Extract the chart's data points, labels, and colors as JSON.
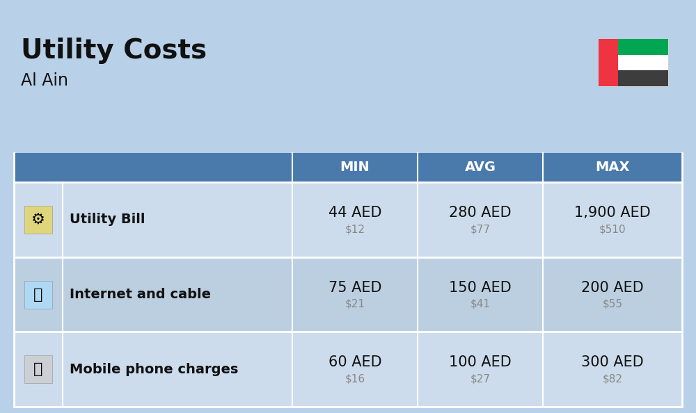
{
  "title": "Utility Costs",
  "subtitle": "Al Ain",
  "bg_color": "#b8d0e8",
  "header_bg": "#4a7aab",
  "header_text_color": "#ffffff",
  "row_bg": "#cddcec",
  "row_bg_alt": "#bccfe0",
  "divider_color": "#ffffff",
  "col_headers": [
    "MIN",
    "AVG",
    "MAX"
  ],
  "rows": [
    {
      "label": "Utility Bill",
      "min_aed": "44 AED",
      "min_usd": "$12",
      "avg_aed": "280 AED",
      "avg_usd": "$77",
      "max_aed": "1,900 AED",
      "max_usd": "$510"
    },
    {
      "label": "Internet and cable",
      "min_aed": "75 AED",
      "min_usd": "$21",
      "avg_aed": "150 AED",
      "avg_usd": "$41",
      "max_aed": "200 AED",
      "max_usd": "$55"
    },
    {
      "label": "Mobile phone charges",
      "min_aed": "60 AED",
      "min_usd": "$16",
      "avg_aed": "100 AED",
      "avg_usd": "$27",
      "max_aed": "300 AED",
      "max_usd": "$82"
    }
  ],
  "flag_colors": {
    "green": "#00A651",
    "white": "#FFFFFF",
    "black": "#3d3d3d",
    "red": "#EF3340"
  },
  "aed_fontsize": 15,
  "usd_fontsize": 11,
  "label_fontsize": 14,
  "header_fontsize": 14,
  "title_fontsize": 28,
  "subtitle_fontsize": 17
}
